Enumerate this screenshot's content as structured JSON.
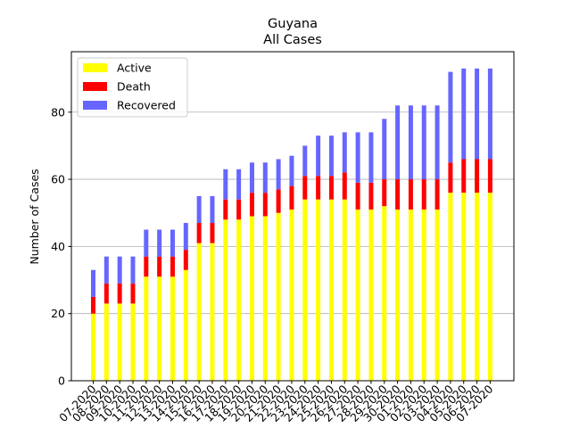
{
  "chart_data": {
    "type": "bar",
    "stacked": true,
    "title": "Guyana",
    "subtitle": "All Cases",
    "xlabel": "",
    "ylabel": "Number of Cases",
    "ylim": [
      0,
      98
    ],
    "yticks": [
      0,
      20,
      40,
      60,
      80
    ],
    "grid": "horizontal",
    "legend_position": "top-left",
    "categories": [
      "07-2020",
      "08-2020",
      "09-2020",
      "10-2020",
      "11-2020",
      "12-2020",
      "13-2020",
      "14-2020",
      "15-2020",
      "16-2020",
      "17-2020",
      "18-2020",
      "19-2020",
      "20-2020",
      "21-2020",
      "22-2020",
      "23-2020",
      "24-2020",
      "25-2020",
      "26-2020",
      "27-2020",
      "28-2020",
      "29-2020",
      "30-2020",
      "01-2020",
      "02-2020",
      "03-2020",
      "04-2020",
      "05-2020",
      "06-2020",
      "07-2020"
    ],
    "series": [
      {
        "name": "Active",
        "color": "#ffff00",
        "values": [
          20,
          23,
          23,
          23,
          31,
          31,
          31,
          33,
          41,
          41,
          48,
          48,
          49,
          49,
          50,
          51,
          54,
          54,
          54,
          54,
          51,
          51,
          52,
          51,
          51,
          51,
          51,
          56,
          56,
          56,
          56
        ]
      },
      {
        "name": "Death",
        "color": "#ff0000",
        "values": [
          5,
          6,
          6,
          6,
          6,
          6,
          6,
          6,
          6,
          6,
          6,
          6,
          7,
          7,
          7,
          7,
          7,
          7,
          7,
          8,
          8,
          8,
          8,
          9,
          9,
          9,
          9,
          9,
          10,
          10,
          10
        ]
      },
      {
        "name": "Recovered",
        "color": "#6666ff",
        "values": [
          8,
          8,
          8,
          8,
          8,
          8,
          8,
          8,
          8,
          8,
          9,
          9,
          9,
          9,
          9,
          9,
          9,
          12,
          12,
          12,
          15,
          15,
          18,
          22,
          22,
          22,
          22,
          27,
          27,
          27,
          27
        ]
      }
    ]
  }
}
